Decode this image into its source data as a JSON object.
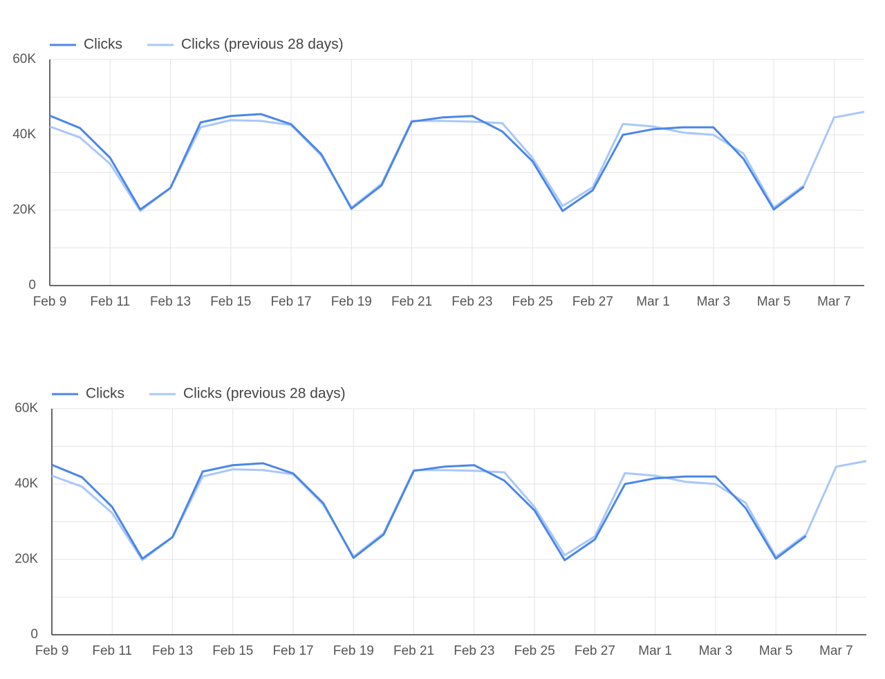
{
  "chart_data": [
    {
      "type": "line",
      "categories": [
        "Feb 9",
        null,
        "Feb 11",
        null,
        "Feb 13",
        null,
        "Feb 15",
        null,
        "Feb 17",
        null,
        "Feb 19",
        null,
        "Feb 21",
        null,
        "Feb 23",
        null,
        "Feb 25",
        null,
        "Feb 27",
        null,
        "Mar 1",
        null,
        "Mar 3",
        null,
        "Mar 5",
        null,
        "Mar 7",
        null
      ],
      "series": [
        {
          "name": "Clicks",
          "color": "#4a86e8",
          "values": [
            45100,
            41800,
            33900,
            20200,
            25900,
            43300,
            45000,
            45500,
            42800,
            34900,
            20400,
            26600,
            43500,
            44600,
            45000,
            40900,
            33000,
            19800,
            25300,
            40000,
            41500,
            42000,
            42000,
            33600,
            20200,
            26200,
            null,
            null
          ]
        },
        {
          "name": "Clicks (previous 28 days)",
          "color": "#a8c7fa",
          "values": [
            42200,
            39300,
            32300,
            19800,
            25900,
            42000,
            43900,
            43700,
            42600,
            34500,
            20700,
            27000,
            43700,
            43700,
            43500,
            43100,
            33900,
            21100,
            26100,
            42900,
            42200,
            40600,
            40000,
            35000,
            20700,
            26600,
            44600,
            46100
          ]
        }
      ],
      "ylim": [
        0,
        60000
      ],
      "yticks": [
        0,
        {
          "value": 20000,
          "label": "20K"
        },
        {
          "value": 40000,
          "label": "40K"
        },
        {
          "value": 60000,
          "label": "60K"
        }
      ],
      "minor_yticks": [
        10000,
        30000,
        50000
      ],
      "grid": true
    },
    {
      "type": "line",
      "categories": [
        "Feb 9",
        null,
        "Feb 11",
        null,
        "Feb 13",
        null,
        "Feb 15",
        null,
        "Feb 17",
        null,
        "Feb 19",
        null,
        "Feb 21",
        null,
        "Feb 23",
        null,
        "Feb 25",
        null,
        "Feb 27",
        null,
        "Mar 1",
        null,
        "Mar 3",
        null,
        "Mar 5",
        null,
        "Mar 7",
        null
      ],
      "series": [
        {
          "name": "Clicks",
          "color": "#4a86e8",
          "values": [
            45100,
            41800,
            33900,
            20200,
            25900,
            43300,
            45000,
            45500,
            42800,
            34900,
            20400,
            26600,
            43500,
            44600,
            45000,
            40900,
            33000,
            19800,
            25300,
            40000,
            41500,
            42000,
            42000,
            33600,
            20200,
            26200,
            null,
            null
          ]
        },
        {
          "name": "Clicks (previous 28 days)",
          "color": "#a8c7fa",
          "values": [
            42200,
            39300,
            32300,
            19800,
            25900,
            42000,
            43900,
            43700,
            42600,
            34500,
            20700,
            27000,
            43700,
            43700,
            43500,
            43100,
            33900,
            21100,
            26100,
            42900,
            42200,
            40600,
            40000,
            35000,
            20700,
            26600,
            44600,
            46100
          ]
        }
      ],
      "ylim": [
        0,
        60000
      ],
      "yticks": [
        0,
        {
          "value": 20000,
          "label": "20K"
        },
        {
          "value": 40000,
          "label": "40K"
        },
        {
          "value": 60000,
          "label": "60K"
        }
      ],
      "minor_yticks": [
        10000,
        30000,
        50000
      ],
      "grid": true
    }
  ]
}
